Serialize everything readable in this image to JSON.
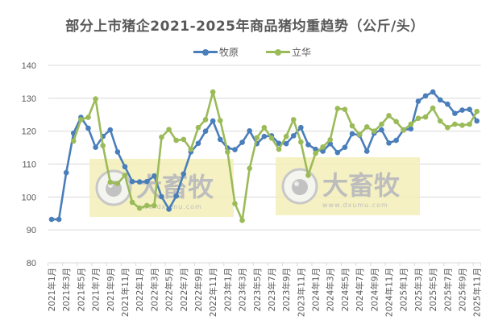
{
  "chart": {
    "title": "部分上市猪企2021-2025年商品猪均重趋势（公斤/头）"
  },
  "legend": {
    "items": [
      {
        "label": "牧原",
        "color": "#4a7ebb"
      },
      {
        "label": "立华",
        "color": "#9bbb59"
      }
    ]
  },
  "watermarks": [
    {
      "text": "大畜牧",
      "url_text": "www.dxumu.com"
    },
    {
      "text": "大畜牧",
      "url_text": "www.dxumu.com"
    }
  ],
  "chart_data": {
    "type": "line",
    "title": "部分上市猪企2021-2025年商品猪均重趋势（公斤/头）",
    "xlabel": "",
    "ylabel": "",
    "ylim": [
      80,
      140
    ],
    "yticks": [
      80,
      90,
      100,
      110,
      120,
      130,
      140
    ],
    "grid": true,
    "legend_position": "top",
    "x": [
      "2021年1月",
      "2021年2月",
      "2021年3月",
      "2021年4月",
      "2021年5月",
      "2021年6月",
      "2021年7月",
      "2021年8月",
      "2021年9月",
      "2021年10月",
      "2021年11月",
      "2021年12月",
      "2022年1月",
      "2022年2月",
      "2022年3月",
      "2022年4月",
      "2022年5月",
      "2022年6月",
      "2022年7月",
      "2022年8月",
      "2022年9月",
      "2022年10月",
      "2022年11月",
      "2022年12月",
      "2023年1月",
      "2023年2月",
      "2023年3月",
      "2023年4月",
      "2023年5月",
      "2023年6月",
      "2023年7月",
      "2023年8月",
      "2023年9月",
      "2023年10月",
      "2023年11月",
      "2023年12月",
      "2024年1月",
      "2024年2月",
      "2024年3月",
      "2024年4月",
      "2024年5月",
      "2024年6月",
      "2024年7月",
      "2024年8月",
      "2024年9月",
      "2024年10月",
      "2024年11月",
      "2024年12月",
      "2025年1月",
      "2025年2月",
      "2025年3月",
      "2025年4月",
      "2025年5月",
      "2025年6月",
      "2025年7月",
      "2025年8月",
      "2025年9月",
      "2025年10月",
      "2025年11月"
    ],
    "x_tick_labels": [
      "2021年1月",
      "2021年3月",
      "2021年5月",
      "2021年7月",
      "2021年9月",
      "2021年11月",
      "2022年1月",
      "2022年3月",
      "2022年5月",
      "2022年7月",
      "2022年9月",
      "2022年11月",
      "2023年1月",
      "2023年3月",
      "2023年5月",
      "2023年7月",
      "2023年9月",
      "2023年11月",
      "2024年1月",
      "2024年3月",
      "2024年5月",
      "2024年7月",
      "2024年9月",
      "2024年11月",
      "2025年1月",
      "2025年3月",
      "2025年5月",
      "2025年7月",
      "2025年9月",
      "2025年11月"
    ],
    "series": [
      {
        "name": "牧原",
        "color": "#4a7ebb",
        "values": [
          93.2,
          93.2,
          107.4,
          119.4,
          124.2,
          120.9,
          115.1,
          118.4,
          120.4,
          113.7,
          109.2,
          104.7,
          104.6,
          104.7,
          106.4,
          100.1,
          96.3,
          100.3,
          107.0,
          113.7,
          116.3,
          120.0,
          123.1,
          117.5,
          114.9,
          114.4,
          116.6,
          120.1,
          116.2,
          118.4,
          118.6,
          116.3,
          116.2,
          118.6,
          121.1,
          115.9,
          114.5,
          113.9,
          116.2,
          113.5,
          115.1,
          119.2,
          118.8,
          113.9,
          119.4,
          120.4,
          116.4,
          117.2,
          120.4,
          120.7,
          129.1,
          130.7,
          131.9,
          129.5,
          128.2,
          125.4,
          126.4,
          126.6,
          123.1
        ]
      },
      {
        "name": "立华",
        "color": "#9bbb59",
        "values": [
          null,
          null,
          null,
          117.0,
          123.5,
          124.2,
          129.8,
          115.6,
          104.5,
          104.1,
          106.6,
          98.4,
          96.6,
          97.4,
          97.4,
          118.2,
          120.5,
          117.2,
          117.5,
          114.5,
          121.1,
          123.5,
          131.9,
          123.2,
          113.7,
          98.0,
          92.9,
          108.7,
          118.0,
          121.1,
          117.9,
          114.5,
          118.4,
          123.5,
          116.7,
          106.6,
          113.3,
          115.2,
          117.4,
          126.9,
          126.6,
          121.6,
          119.0,
          121.3,
          120.0,
          122.1,
          124.7,
          122.9,
          120.3,
          122.1,
          123.9,
          124.3,
          127.0,
          123.1,
          121.1,
          122.1,
          121.8,
          122.1,
          126.0
        ]
      }
    ]
  }
}
